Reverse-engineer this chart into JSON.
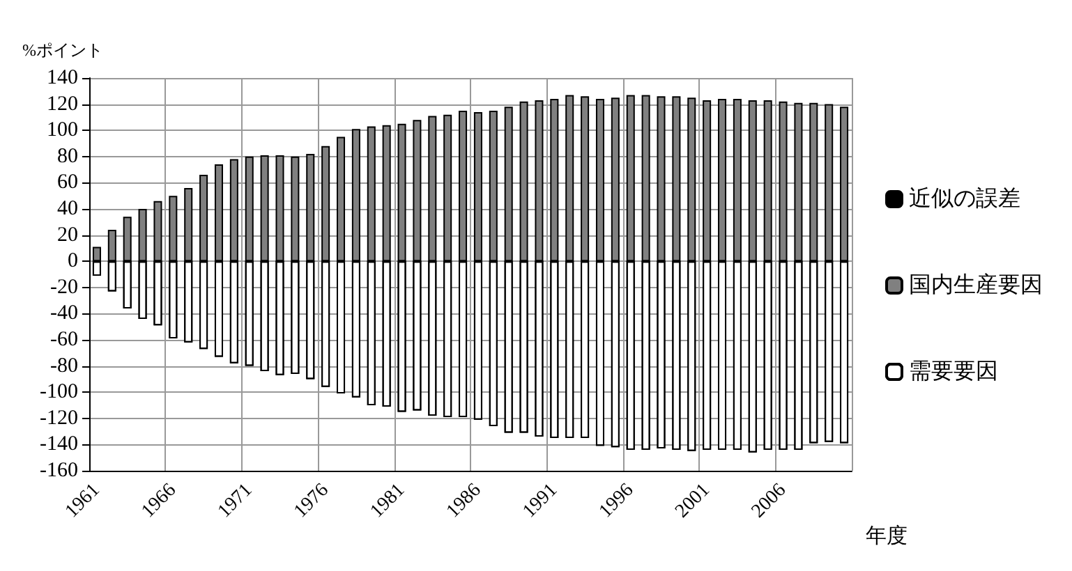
{
  "chart_data": {
    "type": "bar",
    "stacked": true,
    "ylabel": "%ポイント",
    "xlabel": "年度",
    "categories": [
      "1961",
      null,
      null,
      null,
      null,
      "1966",
      null,
      null,
      null,
      null,
      "1971",
      null,
      null,
      null,
      null,
      "1976",
      null,
      null,
      null,
      null,
      "1981",
      null,
      null,
      null,
      null,
      "1986",
      null,
      null,
      null,
      null,
      "1991",
      null,
      null,
      null,
      null,
      "1996",
      null,
      null,
      null,
      null,
      "2001",
      null,
      null,
      null,
      null,
      "2006",
      null,
      null,
      null,
      null
    ],
    "series": [
      {
        "name": "近似の誤差",
        "color": "#000000",
        "values": [
          0,
          0,
          0,
          0,
          0,
          0,
          0,
          0,
          0,
          0,
          0,
          0,
          0,
          0,
          0,
          0,
          0,
          0,
          0,
          0,
          0,
          0,
          0,
          0,
          0,
          0,
          0,
          0,
          0,
          0,
          0,
          0,
          0,
          0,
          0,
          0,
          0,
          0,
          0,
          0,
          0,
          0,
          0,
          0,
          0,
          0,
          0,
          0,
          0,
          0
        ]
      },
      {
        "name": "国内生産要因",
        "color": "#808080",
        "values": [
          11,
          24,
          34,
          40,
          46,
          50,
          56,
          66,
          74,
          78,
          80,
          81,
          81,
          80,
          82,
          88,
          95,
          101,
          103,
          104,
          105,
          108,
          111,
          112,
          115,
          114,
          115,
          118,
          122,
          123,
          124,
          127,
          126,
          124,
          125,
          127,
          127,
          126,
          126,
          125,
          123,
          124,
          124,
          123,
          123,
          122,
          121,
          121,
          120,
          118
        ]
      },
      {
        "name": "需要要因",
        "color": "#ffffff",
        "values": [
          -11,
          -23,
          -36,
          -44,
          -49,
          -59,
          -62,
          -67,
          -73,
          -78,
          -80,
          -84,
          -87,
          -86,
          -90,
          -96,
          -101,
          -104,
          -110,
          -111,
          -115,
          -114,
          -118,
          -119,
          -119,
          -121,
          -126,
          -131,
          -131,
          -134,
          -135,
          -135,
          -135,
          -141,
          -142,
          -144,
          -144,
          -143,
          -144,
          -145,
          -144,
          -144,
          -144,
          -146,
          -144,
          -144,
          -144,
          -139,
          -138,
          -139
        ]
      }
    ],
    "ylim": [
      -160,
      140
    ],
    "yticks": [
      -160,
      -140,
      -120,
      -100,
      -80,
      -60,
      -40,
      -20,
      0,
      20,
      40,
      60,
      80,
      100,
      120,
      140
    ],
    "grid": true,
    "legend": "right"
  }
}
